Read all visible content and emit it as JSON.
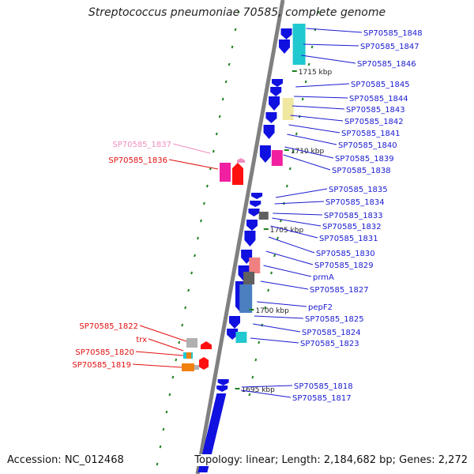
{
  "title": "Streptococcus pneumoniae 70585, complete genome",
  "accession": "Accession: NC_012468",
  "footer": "Topology: linear; Length: 2,184,682 bp; Genes: 2,272",
  "colors": {
    "cds_blue": "#1010e0",
    "label_blue": "#1a1ad0",
    "label_red": "#e01010",
    "label_pink": "#f090c0",
    "backbone": "#808080",
    "tick_green": "#208020",
    "cyan": "#20c8d0",
    "yellow": "#f0e8a0",
    "magenta": "#f020a0",
    "salmon": "#f08080",
    "dark_grey": "#606060",
    "steel_blue": "#4a7fc0",
    "grey": "#b0b0b0",
    "orange": "#f08010"
  },
  "scale_labels": [
    "1715 kbp",
    "1710 kbp",
    "1705 kbp",
    "1700 kbp",
    "1695 kbp"
  ],
  "right_genes": [
    "SP70585_1848",
    "SP70585_1847",
    "SP70585_1846",
    "SP70585_1845",
    "SP70585_1844",
    "SP70585_1843",
    "SP70585_1842",
    "SP70585_1841",
    "SP70585_1840",
    "SP70585_1839",
    "SP70585_1838",
    "SP70585_1835",
    "SP70585_1834",
    "SP70585_1833",
    "SP70585_1832",
    "SP70585_1831",
    "SP70585_1830",
    "SP70585_1829",
    "prmA",
    "SP70585_1827",
    "pepF2",
    "SP70585_1825",
    "SP70585_1824",
    "SP70585_1823",
    "SP70585_1818",
    "SP70585_1817"
  ],
  "left_genes": [
    "SP70585_1837",
    "SP70585_1836",
    "SP70585_1822",
    "trx",
    "SP70585_1820",
    "SP70585_1819"
  ]
}
